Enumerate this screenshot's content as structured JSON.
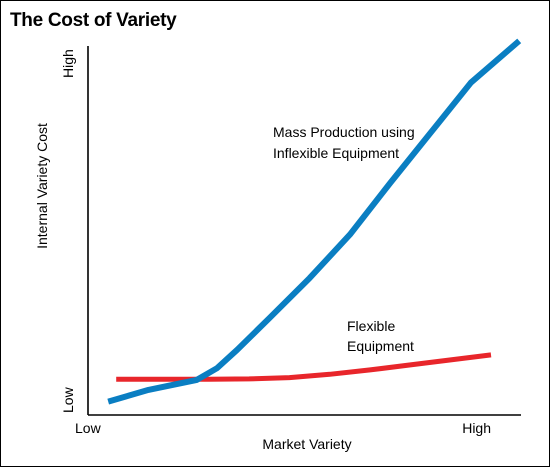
{
  "chart_data": {
    "type": "line",
    "title": "The Cost of Variety",
    "xlabel": "Market Variety",
    "ylabel": "Internal Variety Cost",
    "x_ticks": [
      "Low",
      "High"
    ],
    "y_ticks": [
      "Low",
      "High"
    ],
    "xlim": [
      0,
      10
    ],
    "ylim": [
      0,
      10
    ],
    "grid": false,
    "series": [
      {
        "name": "Mass Production using Inflexible Equipment",
        "label_lines": [
          "Mass Production using",
          "Inflexible Equipment"
        ],
        "color": "#0a7ec2",
        "x": [
          0.5,
          1.5,
          2.7,
          3.2,
          3.7,
          4.5,
          5.5,
          6.5,
          7.5,
          8.5,
          9.5,
          10.7
        ],
        "y": [
          0.4,
          0.75,
          1.05,
          1.4,
          1.95,
          2.9,
          4.1,
          5.4,
          6.95,
          8.45,
          9.95,
          11.2
        ]
      },
      {
        "name": "Flexible Equipment",
        "label_lines": [
          "Flexible",
          "Equipment"
        ],
        "color": "#e8262b",
        "x": [
          0.7,
          2,
          3,
          4,
          5,
          6,
          7,
          8,
          9,
          10
        ],
        "y": [
          1.07,
          1.07,
          1.07,
          1.08,
          1.12,
          1.22,
          1.35,
          1.5,
          1.65,
          1.8
        ]
      }
    ]
  }
}
